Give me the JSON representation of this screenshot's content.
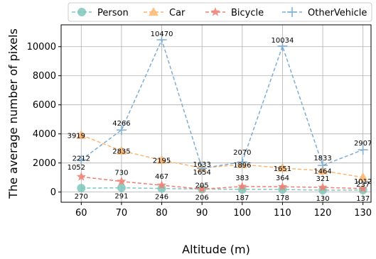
{
  "chart_data": {
    "type": "line",
    "xlabel": "Altitude (m)",
    "ylabel": "The average number of pixels",
    "x": [
      60,
      70,
      80,
      90,
      100,
      110,
      120,
      130
    ],
    "xlim": [
      55,
      132
    ],
    "ylim": [
      -700,
      11500
    ],
    "yticks": [
      0,
      2000,
      4000,
      6000,
      8000,
      10000
    ],
    "grid": true,
    "legend": "top",
    "series": [
      {
        "name": "Person",
        "color": "#7ec7bd",
        "marker": "circle",
        "values": [
          270,
          291,
          246,
          206,
          187,
          178,
          130,
          137
        ],
        "labels": [
          "270",
          "291",
          "246",
          "206",
          "187",
          "178",
          "130",
          "137"
        ]
      },
      {
        "name": "Car",
        "color": "#fcb66e",
        "marker": "triangle",
        "values": [
          3919,
          2835,
          2195,
          1654,
          1896,
          1651,
          1464,
          1012
        ],
        "labels": [
          "3919",
          "2835",
          "2195",
          "1654",
          "1896",
          "1651",
          "1464",
          "1012"
        ]
      },
      {
        "name": "Bicycle",
        "color": "#ee7f72",
        "marker": "star",
        "values": [
          1052,
          730,
          467,
          205,
          383,
          364,
          321,
          237
        ],
        "labels": [
          "1052",
          "730",
          "467",
          "205",
          "383",
          "364",
          "321",
          "237"
        ]
      },
      {
        "name": "OtherVehicle",
        "color": "#7fadd2",
        "marker": "plus",
        "values": [
          2212,
          4266,
          10470,
          1633,
          2070,
          10034,
          1833,
          2907
        ],
        "labels": [
          "2212",
          "4266",
          "10470",
          "1633",
          "2070",
          "10034",
          "1833",
          "2907"
        ]
      }
    ]
  }
}
